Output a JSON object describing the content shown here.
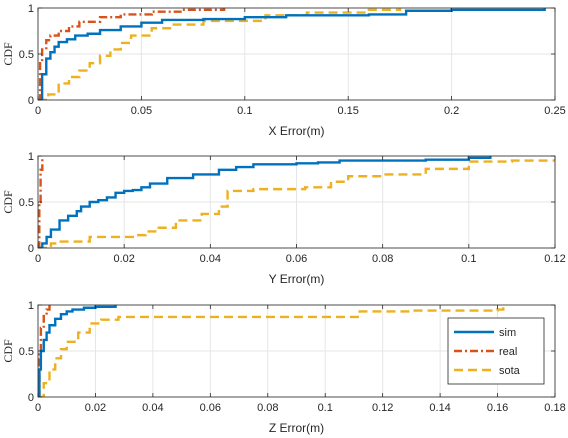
{
  "colors": {
    "sim": "#0072BD",
    "real": "#D95319",
    "sota": "#EDB120",
    "grid": "#e6e6e6",
    "axis": "#262626"
  },
  "chart_data": [
    {
      "type": "line",
      "xlabel": "X Error(m)",
      "ylabel": "CDF",
      "xlim": [
        0,
        0.25
      ],
      "ylim": [
        0,
        1
      ],
      "xticks": [
        "0",
        "0.05",
        "0.1",
        "0.15",
        "0.2",
        "0.25"
      ],
      "xtick_values": [
        0,
        0.05,
        0.1,
        0.15,
        0.2,
        0.25
      ],
      "yticks": [
        "0",
        "0.5",
        "1"
      ],
      "ytick_values": [
        0,
        0.5,
        1
      ],
      "grid": true,
      "series": [
        {
          "name": "sim",
          "style": "solid",
          "color": "#0072BD",
          "x": [
            0,
            0.002,
            0.004,
            0.006,
            0.008,
            0.01,
            0.014,
            0.018,
            0.024,
            0.03,
            0.04,
            0.05,
            0.06,
            0.08,
            0.1,
            0.12,
            0.16,
            0.178,
            0.2,
            0.245
          ],
          "y": [
            0.0,
            0.28,
            0.45,
            0.52,
            0.58,
            0.63,
            0.66,
            0.7,
            0.72,
            0.76,
            0.8,
            0.84,
            0.87,
            0.88,
            0.9,
            0.92,
            0.93,
            0.97,
            0.98,
            1.0
          ]
        },
        {
          "name": "real",
          "style": "dashdot",
          "color": "#D95319",
          "x": [
            0,
            0.001,
            0.002,
            0.004,
            0.006,
            0.01,
            0.015,
            0.02,
            0.03,
            0.04,
            0.055,
            0.07,
            0.09
          ],
          "y": [
            0.0,
            0.4,
            0.55,
            0.65,
            0.7,
            0.75,
            0.8,
            0.85,
            0.9,
            0.93,
            0.96,
            0.98,
            1.0
          ]
        },
        {
          "name": "sota",
          "style": "dashed",
          "color": "#EDB120",
          "x": [
            0,
            0.005,
            0.01,
            0.015,
            0.02,
            0.025,
            0.03,
            0.035,
            0.04,
            0.045,
            0.055,
            0.065,
            0.08,
            0.11,
            0.13,
            0.16,
            0.175
          ],
          "y": [
            0.0,
            0.06,
            0.18,
            0.25,
            0.32,
            0.4,
            0.48,
            0.55,
            0.62,
            0.7,
            0.78,
            0.82,
            0.86,
            0.92,
            0.95,
            0.98,
            1.0
          ]
        }
      ]
    },
    {
      "type": "line",
      "xlabel": "Y Error(m)",
      "ylabel": "CDF",
      "xlim": [
        0,
        0.12
      ],
      "ylim": [
        0,
        1
      ],
      "xticks": [
        "0",
        "0.02",
        "0.04",
        "0.06",
        "0.08",
        "0.1",
        "0.12"
      ],
      "xtick_values": [
        0,
        0.02,
        0.04,
        0.06,
        0.08,
        0.1,
        0.12
      ],
      "yticks": [
        "0",
        "0.5",
        "1"
      ],
      "ytick_values": [
        0,
        0.5,
        1
      ],
      "grid": true,
      "series": [
        {
          "name": "sim",
          "style": "solid",
          "color": "#0072BD",
          "x": [
            0,
            0.001,
            0.002,
            0.003,
            0.005,
            0.007,
            0.009,
            0.01,
            0.012,
            0.014,
            0.016,
            0.018,
            0.02,
            0.022,
            0.024,
            0.026,
            0.03,
            0.036,
            0.042,
            0.046,
            0.05,
            0.06,
            0.065,
            0.07,
            0.09,
            0.1,
            0.105
          ],
          "y": [
            0.0,
            0.05,
            0.12,
            0.2,
            0.3,
            0.35,
            0.4,
            0.45,
            0.5,
            0.52,
            0.55,
            0.6,
            0.62,
            0.63,
            0.66,
            0.7,
            0.76,
            0.8,
            0.85,
            0.88,
            0.91,
            0.92,
            0.93,
            0.95,
            0.96,
            0.98,
            1.0
          ]
        },
        {
          "name": "real",
          "style": "dashdot",
          "color": "#D95319",
          "x": [
            0,
            0.0003,
            0.0006,
            0.001
          ],
          "y": [
            0.0,
            0.5,
            0.85,
            1.0
          ]
        },
        {
          "name": "sota",
          "style": "dashed",
          "color": "#EDB120",
          "x": [
            0,
            0.003,
            0.005,
            0.012,
            0.022,
            0.025,
            0.028,
            0.032,
            0.038,
            0.042,
            0.044,
            0.05,
            0.062,
            0.068,
            0.072,
            0.08,
            0.09,
            0.1,
            0.11,
            0.12
          ],
          "y": [
            0.0,
            0.05,
            0.07,
            0.12,
            0.14,
            0.18,
            0.22,
            0.3,
            0.37,
            0.45,
            0.62,
            0.64,
            0.66,
            0.72,
            0.78,
            0.8,
            0.86,
            0.94,
            0.95,
            0.95
          ]
        }
      ]
    },
    {
      "type": "line",
      "xlabel": "Z Error(m)",
      "ylabel": "CDF",
      "xlim": [
        0,
        0.18
      ],
      "ylim": [
        0,
        1
      ],
      "xticks": [
        "0",
        "0.02",
        "0.04",
        "0.06",
        "0.08",
        "0.1",
        "0.12",
        "0.14",
        "0.16",
        "0.18"
      ],
      "xtick_values": [
        0,
        0.02,
        0.04,
        0.06,
        0.08,
        0.1,
        0.12,
        0.14,
        0.16,
        0.18
      ],
      "yticks": [
        "0",
        "0.5",
        "1"
      ],
      "ytick_values": [
        0,
        0.5,
        1
      ],
      "grid": true,
      "legend": {
        "position": "bottom-right",
        "entries": [
          "sim",
          "real",
          "sota"
        ]
      },
      "series": [
        {
          "name": "sim",
          "style": "solid",
          "color": "#0072BD",
          "x": [
            0,
            0.0005,
            0.001,
            0.002,
            0.003,
            0.004,
            0.006,
            0.008,
            0.01,
            0.012,
            0.016,
            0.02,
            0.027
          ],
          "y": [
            0.0,
            0.3,
            0.5,
            0.62,
            0.7,
            0.78,
            0.85,
            0.9,
            0.93,
            0.95,
            0.97,
            0.98,
            1.0
          ]
        },
        {
          "name": "real",
          "style": "dashdot",
          "color": "#D95319",
          "x": [
            0,
            0.0005,
            0.001,
            0.002,
            0.003,
            0.004
          ],
          "y": [
            0.0,
            0.5,
            0.75,
            0.88,
            0.95,
            1.0
          ]
        },
        {
          "name": "sota",
          "style": "dashed",
          "color": "#EDB120",
          "x": [
            0,
            0.002,
            0.004,
            0.006,
            0.008,
            0.01,
            0.014,
            0.018,
            0.022,
            0.028,
            0.04,
            0.06,
            0.1,
            0.112,
            0.13,
            0.16,
            0.162
          ],
          "y": [
            0.0,
            0.15,
            0.3,
            0.42,
            0.52,
            0.6,
            0.7,
            0.8,
            0.84,
            0.87,
            0.87,
            0.87,
            0.87,
            0.93,
            0.94,
            0.95,
            1.0
          ]
        }
      ]
    }
  ]
}
